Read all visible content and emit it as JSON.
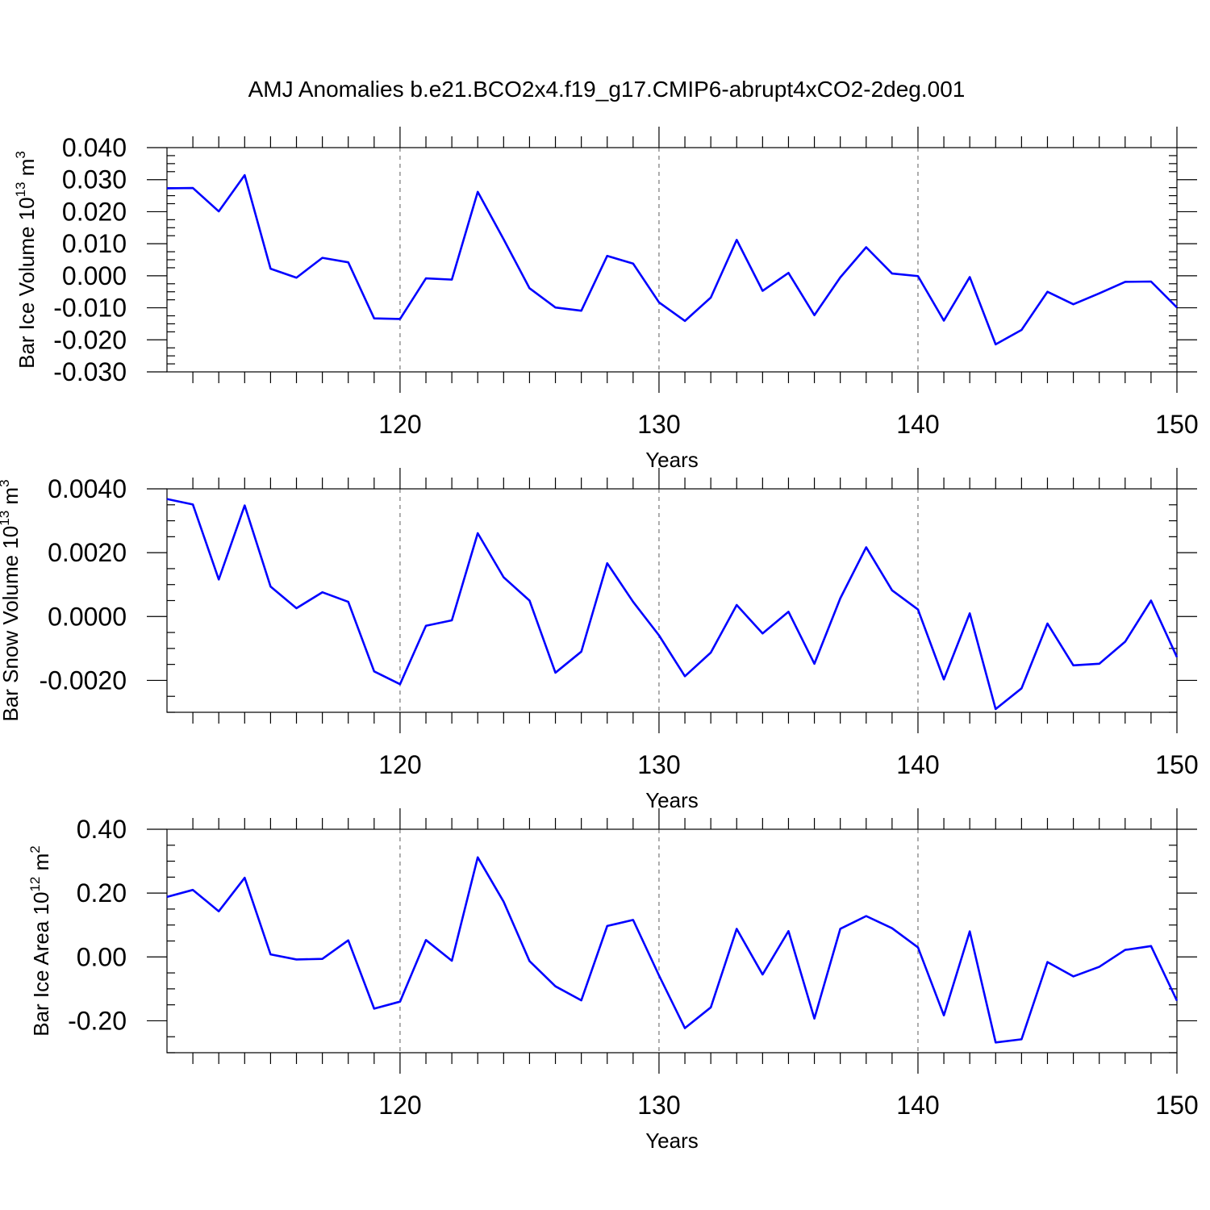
{
  "title": "AMJ Anomalies b.e21.BCO2x4.f19_g17.CMIP6-abrupt4xCO2-2deg.001",
  "colors": {
    "series": "#0000ff",
    "frame": "#000000",
    "grid": "#777777"
  },
  "chart_data": [
    {
      "type": "line",
      "ylabel": {
        "main": "Bar Ice Volume 10",
        "sup": "13",
        "unit": " m",
        "unit_sup": "3"
      },
      "xlabel": "Years",
      "xlim": [
        111,
        150
      ],
      "ylim": [
        -0.03,
        0.04
      ],
      "xticks": [
        120,
        130,
        140,
        150
      ],
      "xtick_labels": [
        "120",
        "130",
        "140",
        "150"
      ],
      "yticks": [
        -0.03,
        -0.02,
        -0.01,
        0.0,
        0.01,
        0.02,
        0.03,
        0.04
      ],
      "ytick_labels": [
        "-0.030",
        "-0.020",
        "-0.010",
        "0.000",
        "0.010",
        "0.020",
        "0.030",
        "0.040"
      ],
      "grid": "dashed vertical at 120, 130, 140",
      "x": [
        111,
        112,
        113,
        114,
        115,
        116,
        117,
        118,
        119,
        120,
        121,
        122,
        123,
        124,
        125,
        126,
        127,
        128,
        129,
        130,
        131,
        132,
        133,
        134,
        135,
        136,
        137,
        138,
        139,
        140,
        141,
        142,
        143,
        144,
        145,
        146,
        147,
        148,
        149,
        150
      ],
      "values": [
        0.0273,
        0.0274,
        0.0201,
        0.0314,
        0.0022,
        -0.0006,
        0.0056,
        0.0042,
        -0.0133,
        -0.0135,
        -0.0008,
        -0.0012,
        0.0262,
        0.0114,
        -0.0039,
        -0.0099,
        -0.0109,
        0.0062,
        0.0038,
        -0.0083,
        -0.0141,
        -0.0068,
        0.0112,
        -0.0047,
        0.0009,
        -0.0123,
        -0.0005,
        0.0089,
        0.0007,
        -0.0001,
        -0.014,
        -0.0004,
        -0.0214,
        -0.0169,
        -0.005,
        -0.0089,
        -0.0055,
        -0.0019,
        -0.0018,
        -0.0099
      ]
    },
    {
      "type": "line",
      "ylabel": {
        "main": "Bar Snow Volume 10",
        "sup": "13",
        "unit": " m",
        "unit_sup": "3"
      },
      "xlabel": "Years",
      "xlim": [
        111,
        150
      ],
      "ylim": [
        -0.003,
        0.004
      ],
      "xticks": [
        120,
        130,
        140,
        150
      ],
      "xtick_labels": [
        "120",
        "130",
        "140",
        "150"
      ],
      "yticks": [
        -0.002,
        0.0,
        0.002,
        0.004
      ],
      "ytick_labels": [
        "-0.0020",
        "0.0000",
        "0.0020",
        "0.0040"
      ],
      "grid": "dashed vertical at 120, 130, 140",
      "x": [
        111,
        112,
        113,
        114,
        115,
        116,
        117,
        118,
        119,
        120,
        121,
        122,
        123,
        124,
        125,
        126,
        127,
        128,
        129,
        130,
        131,
        132,
        133,
        134,
        135,
        136,
        137,
        138,
        139,
        140,
        141,
        142,
        143,
        144,
        145,
        146,
        147,
        148,
        149,
        150
      ],
      "values": [
        0.00368,
        0.00351,
        0.00116,
        0.00348,
        0.00094,
        0.00026,
        0.00076,
        0.00046,
        -0.00172,
        -0.00212,
        -0.00029,
        -0.00012,
        0.00261,
        0.00123,
        0.0005,
        -0.00176,
        -0.0011,
        0.00167,
        0.00046,
        -0.00059,
        -0.00187,
        -0.00113,
        0.00036,
        -0.00053,
        0.00015,
        -0.00148,
        0.00057,
        0.00217,
        0.00082,
        0.00022,
        -0.00197,
        0.0001,
        -0.0029,
        -0.00225,
        -0.00022,
        -0.00153,
        -0.00148,
        -0.00079,
        0.0005,
        -0.00127
      ]
    },
    {
      "type": "line",
      "ylabel": {
        "main": "Bar Ice Area 10",
        "sup": "12",
        "unit": " m",
        "unit_sup": "2"
      },
      "xlabel": "Years",
      "xlim": [
        111,
        150
      ],
      "ylim": [
        -0.3,
        0.4
      ],
      "xticks": [
        120,
        130,
        140,
        150
      ],
      "xtick_labels": [
        "120",
        "130",
        "140",
        "150"
      ],
      "yticks": [
        -0.2,
        0.0,
        0.2,
        0.4
      ],
      "ytick_labels": [
        "-0.20",
        "0.00",
        "0.20",
        "0.40"
      ],
      "grid": "dashed vertical at 120, 130, 140",
      "x": [
        111,
        112,
        113,
        114,
        115,
        116,
        117,
        118,
        119,
        120,
        121,
        122,
        123,
        124,
        125,
        126,
        127,
        128,
        129,
        130,
        131,
        132,
        133,
        134,
        135,
        136,
        137,
        138,
        139,
        140,
        141,
        142,
        143,
        144,
        145,
        146,
        147,
        148,
        149,
        150
      ],
      "values": [
        0.188,
        0.21,
        0.143,
        0.248,
        0.008,
        -0.008,
        -0.006,
        0.052,
        -0.162,
        -0.14,
        0.053,
        -0.012,
        0.312,
        0.173,
        -0.013,
        -0.092,
        -0.136,
        0.097,
        0.116,
        -0.058,
        -0.223,
        -0.158,
        0.088,
        -0.055,
        0.081,
        -0.193,
        0.088,
        0.128,
        0.09,
        0.03,
        -0.183,
        0.08,
        -0.268,
        -0.258,
        -0.016,
        -0.061,
        -0.031,
        0.022,
        0.034,
        -0.137
      ]
    }
  ]
}
